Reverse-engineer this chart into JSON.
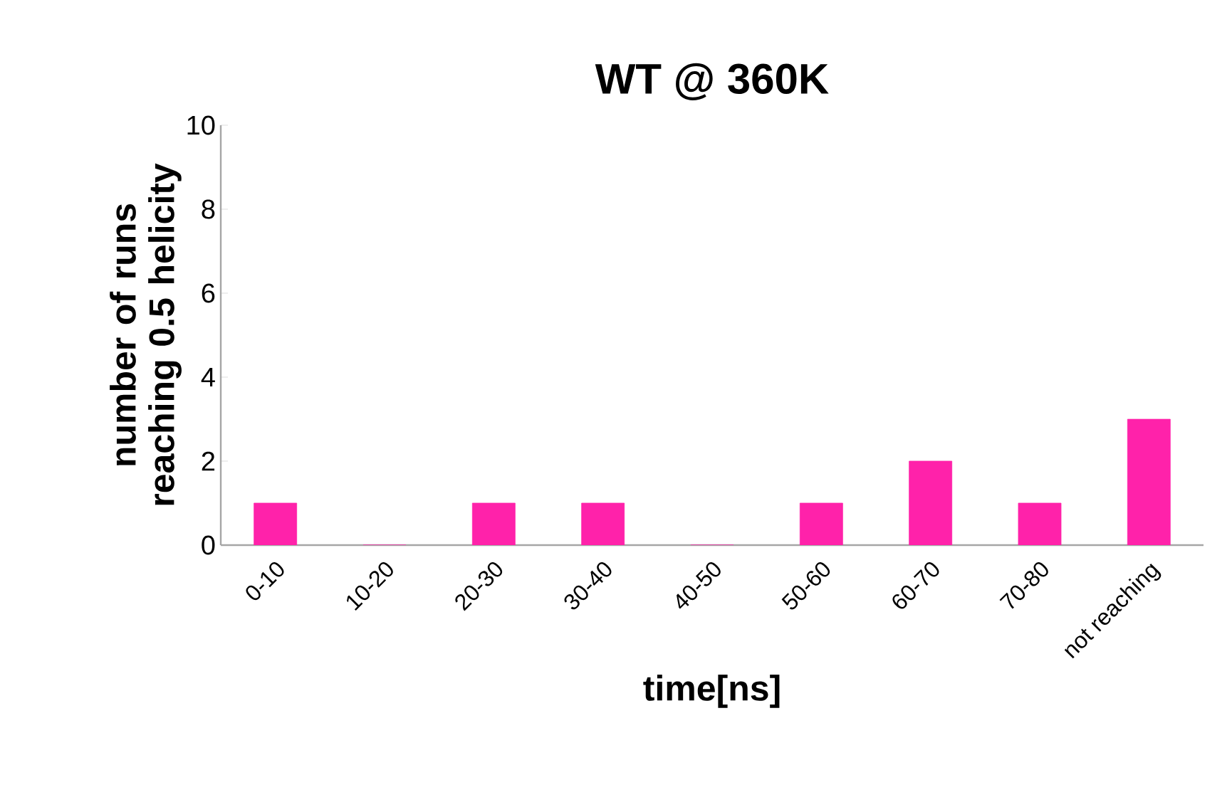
{
  "chart_data": {
    "type": "bar",
    "title": "WT @ 360K",
    "xlabel": "time[ns]",
    "ylabel": "number of runs reaching 0.5 helicity",
    "categories": [
      "0-10",
      "10-20",
      "20-30",
      "30-40",
      "40-50",
      "50-60",
      "60-70",
      "70-80",
      "not reaching"
    ],
    "values": [
      1,
      0,
      1,
      1,
      0,
      1,
      2,
      1,
      3
    ],
    "color": "#ff22aa",
    "ylim": [
      0,
      10
    ],
    "yticks": [
      0,
      2,
      4,
      6,
      8,
      10
    ],
    "grid": false
  }
}
